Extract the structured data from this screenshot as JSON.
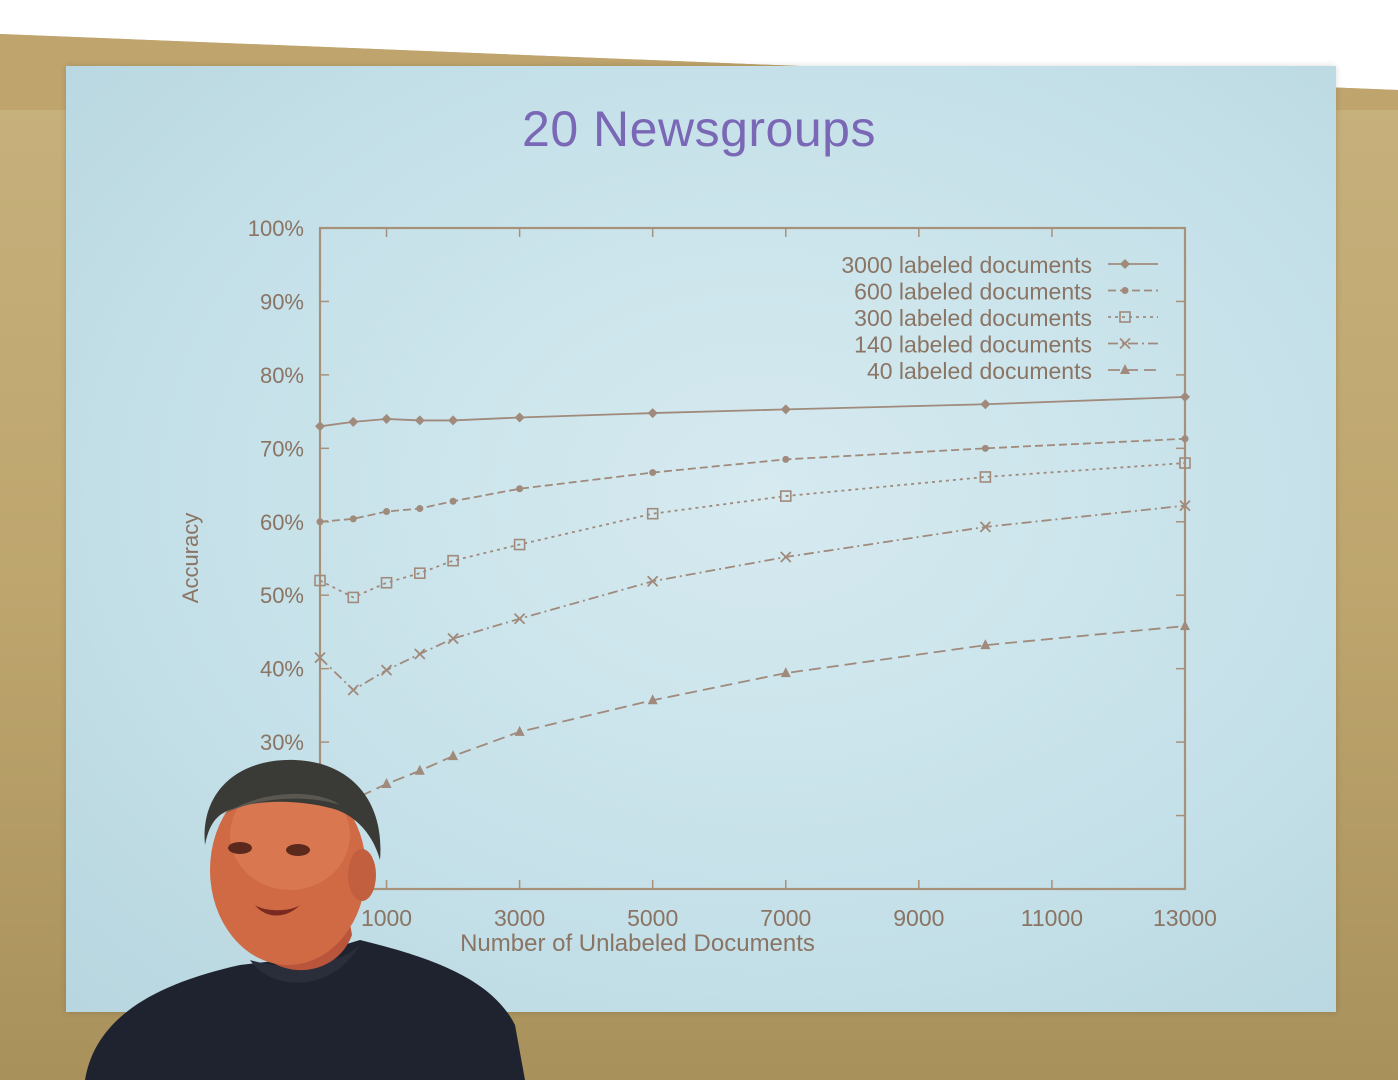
{
  "slide": {
    "title": "20 Newsgroups"
  },
  "chart_data": {
    "type": "line",
    "title": "20 Newsgroups",
    "xlabel": "Number of Unlabeled Documents",
    "ylabel": "Accuracy",
    "xlim": [
      0,
      13000
    ],
    "ylim": [
      10,
      100
    ],
    "x_ticks": [
      1000,
      3000,
      5000,
      7000,
      9000,
      11000,
      13000
    ],
    "x_tick_labels": [
      "1000",
      "3000",
      "5000",
      "7000",
      "9000",
      "11000",
      "13000"
    ],
    "y_ticks": [
      20,
      30,
      40,
      50,
      60,
      70,
      80,
      90,
      100
    ],
    "y_tick_labels": [
      "20%",
      "30%",
      "40%",
      "50%",
      "60%",
      "70%",
      "80%",
      "90%",
      "100%"
    ],
    "grid": false,
    "legend_position": "top-right",
    "x": [
      0,
      500,
      1000,
      1500,
      2000,
      3000,
      5000,
      7000,
      10000,
      13000
    ],
    "series": [
      {
        "name": "3000 labeled documents",
        "marker": "diamond",
        "dash": "solid",
        "values": [
          73,
          73.6,
          74,
          73.8,
          73.8,
          74.2,
          74.8,
          75.3,
          76,
          77
        ]
      },
      {
        "name": "600 labeled documents",
        "marker": "dot",
        "dash": "dashed",
        "values": [
          60,
          60.4,
          61.4,
          61.8,
          62.8,
          64.5,
          66.7,
          68.5,
          70,
          71.3
        ]
      },
      {
        "name": "300 labeled documents",
        "marker": "square",
        "dash": "dotted",
        "values": [
          52,
          49.7,
          51.7,
          53,
          54.7,
          56.9,
          61.1,
          63.5,
          66.1,
          68
        ]
      },
      {
        "name": "140 labeled documents",
        "marker": "x",
        "dash": "dashdot",
        "values": [
          41.5,
          37.1,
          39.8,
          42,
          44.1,
          46.8,
          51.9,
          55.2,
          59.3,
          62.2
        ]
      },
      {
        "name": "40 labeled documents",
        "marker": "triangle",
        "dash": "longdash",
        "values": [
          26.6,
          22.2,
          24.3,
          26.1,
          28.1,
          31.4,
          35.7,
          39.4,
          43.2,
          45.8
        ]
      }
    ]
  },
  "colors": {
    "axis": "#a8917a",
    "series": "#a08a7c",
    "text": "#8a7464",
    "title": "#7a68b6"
  }
}
